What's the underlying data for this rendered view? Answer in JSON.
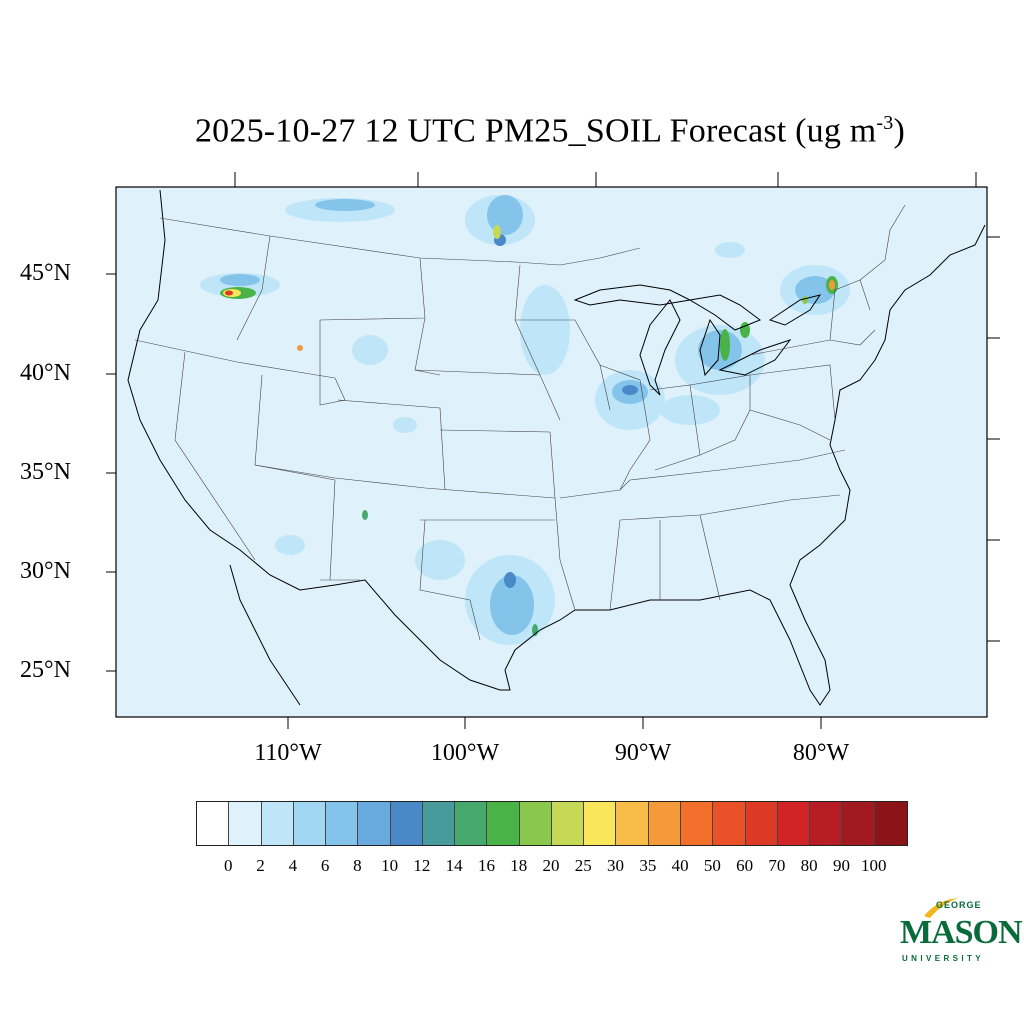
{
  "title": {
    "main": "2025-10-27 12 UTC PM25_SOIL Forecast (ug m",
    "sup": "-3",
    "close": ")"
  },
  "axes": {
    "lat_labels": [
      "45°N",
      "40°N",
      "35°N",
      "30°N",
      "25°N"
    ],
    "lon_labels": [
      "110°W",
      "100°W",
      "90°W",
      "80°W"
    ]
  },
  "colorbar": {
    "levels": [
      "0",
      "2",
      "4",
      "6",
      "8",
      "10",
      "12",
      "14",
      "16",
      "18",
      "20",
      "25",
      "30",
      "35",
      "40",
      "50",
      "60",
      "70",
      "80",
      "90",
      "100"
    ],
    "colors": [
      "#ffffff",
      "#dff2fb",
      "#bfe6f8",
      "#a1d7f3",
      "#84c3ea",
      "#68a9de",
      "#4a89c8",
      "#479b9b",
      "#46a86c",
      "#49b347",
      "#89c84c",
      "#c5d957",
      "#f9e65b",
      "#f8bd48",
      "#f59a3a",
      "#f2702c",
      "#ea5128",
      "#dd3a26",
      "#d22327",
      "#b81c24",
      "#a11a1f",
      "#8c1418"
    ]
  },
  "map": {
    "background_color": "#dff1fb",
    "ocean_color": "#dff1fb"
  },
  "logo": {
    "george": "GEORGE",
    "mason": "MASON",
    "university": "UNIVERSITY"
  }
}
